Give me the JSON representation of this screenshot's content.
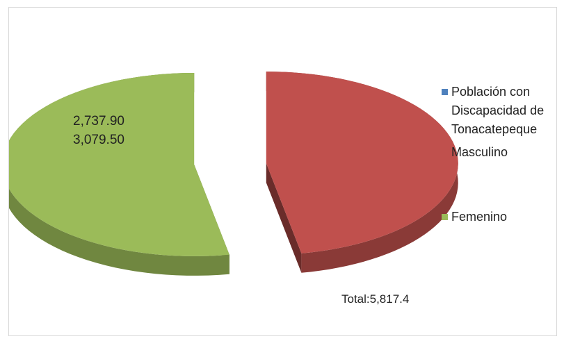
{
  "chart_data": {
    "type": "pie",
    "title": "",
    "series": [
      {
        "name": "Población con Discapacidad de Tonacatepeque",
        "value": 0,
        "color": "#4f81bd"
      },
      {
        "name": "Masculino",
        "value": 2737.9,
        "color": "#c0504d"
      },
      {
        "name": "Femenino",
        "value": 3079.5,
        "color": "#9bbb59"
      }
    ],
    "data_labels": [
      "2,737.90",
      "3,079.50"
    ],
    "legend": {
      "position": "right",
      "entries": [
        "Población con\nDiscapacidad de\nTonacatepeque",
        "Masculino",
        "Femenino"
      ]
    },
    "annotation": "Total:5,817.4"
  }
}
